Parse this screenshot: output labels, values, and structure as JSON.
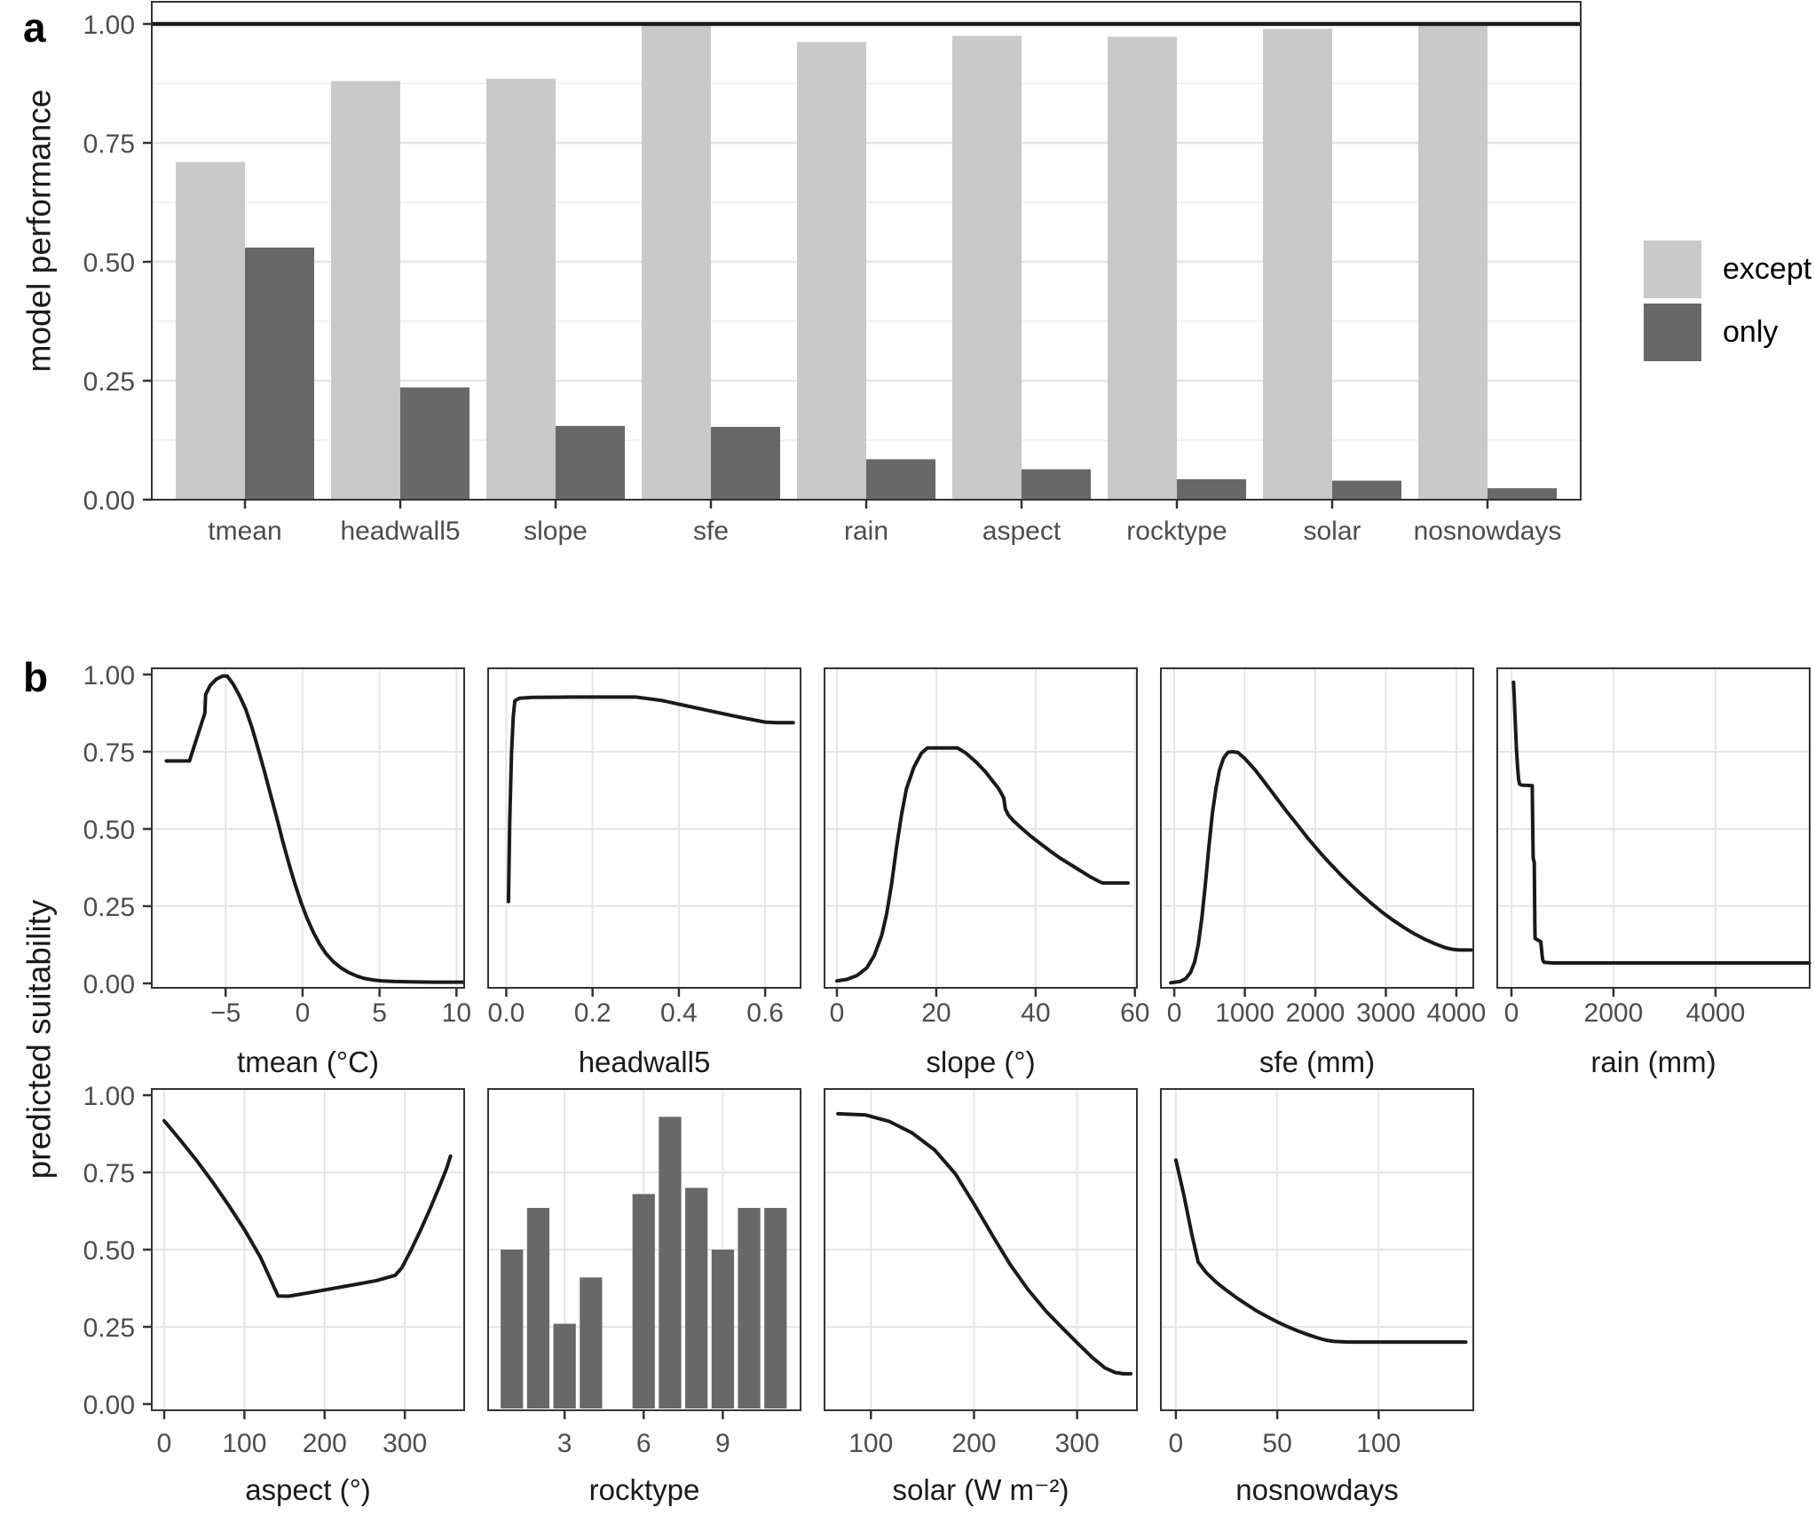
{
  "figure": {
    "panel_a_label": "a",
    "panel_b_label": "b",
    "ylabel_a": "model performance",
    "ylabel_b": "predicted suitability"
  },
  "colors": {
    "except": "#c9c9c9",
    "only": "#686868",
    "line": "#1a1a1a",
    "grid_major": "#e6e6e6",
    "grid_minor": "#ededed",
    "border": "#333333",
    "tick_mark": "#333333",
    "tick_text": "#4d4d4d",
    "title_text": "#1a1a1a",
    "background": "#ffffff"
  },
  "chart_data": [
    {
      "id": "model-performance",
      "type": "bar",
      "panel": "a",
      "ylabel": "model performance",
      "categories": [
        "tmean",
        "headwall5",
        "slope",
        "sfe",
        "rain",
        "aspect",
        "rocktype",
        "solar",
        "nosnowdays"
      ],
      "series": [
        {
          "name": "except",
          "color": "#c9c9c9",
          "values": [
            0.71,
            0.88,
            0.885,
            1.0,
            0.962,
            0.975,
            0.973,
            0.99,
            0.997
          ]
        },
        {
          "name": "only",
          "color": "#686868",
          "values": [
            0.53,
            0.236,
            0.155,
            0.153,
            0.085,
            0.064,
            0.043,
            0.04,
            0.024
          ]
        }
      ],
      "ylim": [
        0,
        1.05
      ],
      "yticks": {
        "values": [
          0,
          0.25,
          0.5,
          0.75,
          1
        ],
        "labels": [
          "0.00",
          "0.25",
          "0.50",
          "0.75",
          "1.00"
        ]
      },
      "grid_minor_step": 0.125,
      "hline": 1.0,
      "legend_position": "right"
    },
    {
      "id": "tmean",
      "type": "line",
      "row": 0,
      "col": 0,
      "show_y": true,
      "xlabel": "tmean (°C)",
      "xlim": [
        -9.8,
        10.5
      ],
      "xticks": {
        "values": [
          -5,
          0,
          5,
          10
        ],
        "labels": [
          "−5",
          "0",
          "5",
          "10"
        ]
      },
      "ylim": [
        0,
        1
      ],
      "points": [
        [
          -8.85,
          0.72
        ],
        [
          -7.35,
          0.72
        ],
        [
          -7.0,
          0.775
        ],
        [
          -6.45,
          0.86
        ],
        [
          -6.35,
          0.875
        ],
        [
          -6.3,
          0.935
        ],
        [
          -6.0,
          0.965
        ],
        [
          -5.6,
          0.985
        ],
        [
          -5.2,
          0.995
        ],
        [
          -4.9,
          0.995
        ],
        [
          -4.5,
          0.968
        ],
        [
          -4.1,
          0.932
        ],
        [
          -3.7,
          0.888
        ],
        [
          -3.3,
          0.83
        ],
        [
          -2.9,
          0.762
        ],
        [
          -2.5,
          0.69
        ],
        [
          -2.1,
          0.615
        ],
        [
          -1.7,
          0.54
        ],
        [
          -1.3,
          0.462
        ],
        [
          -0.9,
          0.39
        ],
        [
          -0.5,
          0.322
        ],
        [
          -0.1,
          0.262
        ],
        [
          0.3,
          0.21
        ],
        [
          0.7,
          0.165
        ],
        [
          1.1,
          0.128
        ],
        [
          1.5,
          0.098
        ],
        [
          2.0,
          0.07
        ],
        [
          2.5,
          0.05
        ],
        [
          3.0,
          0.035
        ],
        [
          3.5,
          0.024
        ],
        [
          4.0,
          0.016
        ],
        [
          4.6,
          0.011
        ],
        [
          5.2,
          0.008
        ],
        [
          6.0,
          0.006
        ],
        [
          7.0,
          0.005
        ],
        [
          8.5,
          0.004
        ],
        [
          10.45,
          0.004
        ]
      ]
    },
    {
      "id": "headwall5",
      "type": "line",
      "row": 0,
      "col": 1,
      "show_y": false,
      "xlabel": "headwall5",
      "xlim": [
        -0.042,
        0.682
      ],
      "xticks": {
        "values": [
          0.0,
          0.2,
          0.4,
          0.6
        ],
        "labels": [
          "0.0",
          "0.2",
          "0.4",
          "0.6"
        ]
      },
      "ylim": [
        0,
        1
      ],
      "points": [
        [
          0.005,
          0.265
        ],
        [
          0.008,
          0.52
        ],
        [
          0.012,
          0.74
        ],
        [
          0.016,
          0.86
        ],
        [
          0.02,
          0.915
        ],
        [
          0.03,
          0.923
        ],
        [
          0.06,
          0.926
        ],
        [
          0.15,
          0.927
        ],
        [
          0.3,
          0.927
        ],
        [
          0.36,
          0.916
        ],
        [
          0.42,
          0.898
        ],
        [
          0.48,
          0.88
        ],
        [
          0.54,
          0.862
        ],
        [
          0.6,
          0.846
        ],
        [
          0.625,
          0.844
        ],
        [
          0.665,
          0.844
        ]
      ]
    },
    {
      "id": "slope",
      "type": "line",
      "row": 0,
      "col": 2,
      "show_y": false,
      "xlabel": "slope (°)",
      "xlim": [
        -2.5,
        60.4
      ],
      "xticks": {
        "values": [
          0,
          20,
          40,
          60
        ],
        "labels": [
          "0",
          "20",
          "40",
          "60"
        ]
      },
      "ylim": [
        0,
        1
      ],
      "points": [
        [
          0,
          0.008
        ],
        [
          2,
          0.013
        ],
        [
          4,
          0.025
        ],
        [
          6,
          0.05
        ],
        [
          7.5,
          0.09
        ],
        [
          9,
          0.155
        ],
        [
          10,
          0.225
        ],
        [
          11,
          0.32
        ],
        [
          12,
          0.44
        ],
        [
          13,
          0.545
        ],
        [
          14,
          0.63
        ],
        [
          15.5,
          0.7
        ],
        [
          17,
          0.745
        ],
        [
          18.2,
          0.762
        ],
        [
          24.3,
          0.762
        ],
        [
          26,
          0.745
        ],
        [
          28,
          0.717
        ],
        [
          30,
          0.683
        ],
        [
          31.5,
          0.652
        ],
        [
          32.5,
          0.632
        ],
        [
          33.2,
          0.612
        ],
        [
          33.6,
          0.6
        ],
        [
          33.9,
          0.565
        ],
        [
          34.5,
          0.545
        ],
        [
          35.5,
          0.527
        ],
        [
          37,
          0.505
        ],
        [
          39,
          0.477
        ],
        [
          41,
          0.452
        ],
        [
          43,
          0.428
        ],
        [
          45,
          0.405
        ],
        [
          47,
          0.385
        ],
        [
          49,
          0.365
        ],
        [
          51,
          0.345
        ],
        [
          53,
          0.328
        ],
        [
          53.5,
          0.325
        ],
        [
          58.6,
          0.325
        ]
      ]
    },
    {
      "id": "sfe",
      "type": "line",
      "row": 0,
      "col": 3,
      "show_y": false,
      "xlabel": "sfe (mm)",
      "xlim": [
        -190,
        4240
      ],
      "xticks": {
        "values": [
          0,
          1000,
          2000,
          3000,
          4000
        ],
        "labels": [
          "0",
          "1000",
          "2000",
          "3000",
          "4000"
        ]
      },
      "ylim": [
        0,
        1
      ],
      "points": [
        [
          -50,
          0.002
        ],
        [
          80,
          0.006
        ],
        [
          160,
          0.015
        ],
        [
          230,
          0.035
        ],
        [
          290,
          0.07
        ],
        [
          340,
          0.125
        ],
        [
          390,
          0.21
        ],
        [
          440,
          0.32
        ],
        [
          490,
          0.44
        ],
        [
          540,
          0.55
        ],
        [
          590,
          0.63
        ],
        [
          640,
          0.69
        ],
        [
          700,
          0.73
        ],
        [
          760,
          0.748
        ],
        [
          820,
          0.75
        ],
        [
          900,
          0.748
        ],
        [
          1000,
          0.728
        ],
        [
          1150,
          0.69
        ],
        [
          1300,
          0.645
        ],
        [
          1450,
          0.6
        ],
        [
          1600,
          0.555
        ],
        [
          1750,
          0.512
        ],
        [
          1900,
          0.468
        ],
        [
          2050,
          0.428
        ],
        [
          2200,
          0.39
        ],
        [
          2350,
          0.354
        ],
        [
          2500,
          0.32
        ],
        [
          2650,
          0.288
        ],
        [
          2800,
          0.258
        ],
        [
          2950,
          0.23
        ],
        [
          3100,
          0.205
        ],
        [
          3250,
          0.182
        ],
        [
          3400,
          0.161
        ],
        [
          3550,
          0.143
        ],
        [
          3700,
          0.128
        ],
        [
          3850,
          0.115
        ],
        [
          3950,
          0.11
        ],
        [
          4050,
          0.108
        ],
        [
          4210,
          0.108
        ]
      ]
    },
    {
      "id": "rain",
      "type": "line",
      "row": 0,
      "col": 4,
      "show_y": false,
      "xlabel": "rain (mm)",
      "xlim": [
        -278,
        5846
      ],
      "xticks": {
        "values": [
          0,
          2000,
          4000
        ],
        "labels": [
          "0",
          "2000",
          "4000"
        ]
      },
      "ylim": [
        0,
        1
      ],
      "points": [
        [
          40,
          0.975
        ],
        [
          52,
          0.935
        ],
        [
          65,
          0.885
        ],
        [
          80,
          0.825
        ],
        [
          100,
          0.755
        ],
        [
          120,
          0.7
        ],
        [
          140,
          0.662
        ],
        [
          158,
          0.645
        ],
        [
          200,
          0.642
        ],
        [
          300,
          0.641
        ],
        [
          408,
          0.64
        ],
        [
          416,
          0.52
        ],
        [
          424,
          0.41
        ],
        [
          430,
          0.402
        ],
        [
          447,
          0.392
        ],
        [
          452,
          0.3
        ],
        [
          458,
          0.2
        ],
        [
          463,
          0.145
        ],
        [
          520,
          0.14
        ],
        [
          575,
          0.135
        ],
        [
          585,
          0.118
        ],
        [
          600,
          0.092
        ],
        [
          615,
          0.075
        ],
        [
          640,
          0.068
        ],
        [
          800,
          0.066
        ],
        [
          2000,
          0.066
        ],
        [
          4000,
          0.066
        ],
        [
          5840,
          0.066
        ]
      ]
    },
    {
      "id": "aspect",
      "type": "line",
      "row": 1,
      "col": 0,
      "show_y": true,
      "xlabel": "aspect (°)",
      "xlim": [
        -15.5,
        374
      ],
      "xticks": {
        "values": [
          0,
          100,
          200,
          300
        ],
        "labels": [
          "0",
          "100",
          "200",
          "300"
        ]
      },
      "ylim": [
        0,
        1
      ],
      "points": [
        [
          0,
          0.917
        ],
        [
          20,
          0.855
        ],
        [
          40,
          0.79
        ],
        [
          60,
          0.72
        ],
        [
          80,
          0.645
        ],
        [
          100,
          0.565
        ],
        [
          120,
          0.475
        ],
        [
          135,
          0.39
        ],
        [
          142,
          0.35
        ],
        [
          155,
          0.349
        ],
        [
          180,
          0.36
        ],
        [
          210,
          0.374
        ],
        [
          240,
          0.388
        ],
        [
          265,
          0.4
        ],
        [
          288,
          0.417
        ],
        [
          296,
          0.44
        ],
        [
          308,
          0.5
        ],
        [
          320,
          0.565
        ],
        [
          332,
          0.635
        ],
        [
          344,
          0.71
        ],
        [
          352,
          0.762
        ],
        [
          357,
          0.803
        ]
      ]
    },
    {
      "id": "rocktype",
      "type": "bar",
      "row": 1,
      "col": 1,
      "show_y": false,
      "xlabel": "rocktype",
      "xlim": [
        0.1,
        11.95
      ],
      "xticks": {
        "values": [
          3,
          6,
          9
        ],
        "labels": [
          "3",
          "6",
          "9"
        ]
      },
      "ylim": [
        0,
        1
      ],
      "bar_x": [
        1,
        2,
        3,
        4,
        6,
        7,
        8,
        9,
        10,
        11
      ],
      "bar_heights": [
        0.5,
        0.635,
        0.26,
        0.41,
        0.68,
        0.93,
        0.7,
        0.5,
        0.635,
        0.635
      ],
      "bar_width": 0.85,
      "bar_color": "#686868"
    },
    {
      "id": "solar",
      "type": "line",
      "row": 1,
      "col": 2,
      "show_y": false,
      "xlabel": "solar (W m⁻²)",
      "xlim": [
        55,
        358
      ],
      "xticks": {
        "values": [
          100,
          200,
          300
        ],
        "labels": [
          "100",
          "200",
          "300"
        ]
      },
      "ylim": [
        0,
        1
      ],
      "points": [
        [
          68,
          0.94
        ],
        [
          95,
          0.936
        ],
        [
          118,
          0.915
        ],
        [
          140,
          0.878
        ],
        [
          162,
          0.822
        ],
        [
          182,
          0.745
        ],
        [
          200,
          0.648
        ],
        [
          218,
          0.545
        ],
        [
          235,
          0.452
        ],
        [
          252,
          0.372
        ],
        [
          270,
          0.3
        ],
        [
          287,
          0.242
        ],
        [
          302,
          0.192
        ],
        [
          315,
          0.15
        ],
        [
          327,
          0.117
        ],
        [
          337,
          0.102
        ],
        [
          345,
          0.098
        ],
        [
          352,
          0.098
        ]
      ]
    },
    {
      "id": "nosnowdays",
      "type": "line",
      "row": 1,
      "col": 3,
      "show_y": false,
      "xlabel": "nosnowdays",
      "xlim": [
        -7.4,
        146.7
      ],
      "xticks": {
        "values": [
          0,
          50,
          100
        ],
        "labels": [
          "0",
          "50",
          "100"
        ]
      },
      "ylim": [
        0,
        1
      ],
      "points": [
        [
          0,
          0.79
        ],
        [
          4,
          0.675
        ],
        [
          8,
          0.545
        ],
        [
          11,
          0.46
        ],
        [
          15,
          0.425
        ],
        [
          20,
          0.394
        ],
        [
          25,
          0.368
        ],
        [
          30,
          0.344
        ],
        [
          35,
          0.322
        ],
        [
          40,
          0.301
        ],
        [
          45,
          0.283
        ],
        [
          50,
          0.266
        ],
        [
          55,
          0.251
        ],
        [
          60,
          0.237
        ],
        [
          65,
          0.225
        ],
        [
          70,
          0.214
        ],
        [
          74,
          0.207
        ],
        [
          78,
          0.203
        ],
        [
          85,
          0.201
        ],
        [
          143,
          0.201
        ]
      ]
    }
  ],
  "shared_yticks": {
    "values": [
      0,
      0.25,
      0.5,
      0.75,
      1
    ],
    "labels": [
      "0.00",
      "0.25",
      "0.50",
      "0.75",
      "1.00"
    ]
  }
}
